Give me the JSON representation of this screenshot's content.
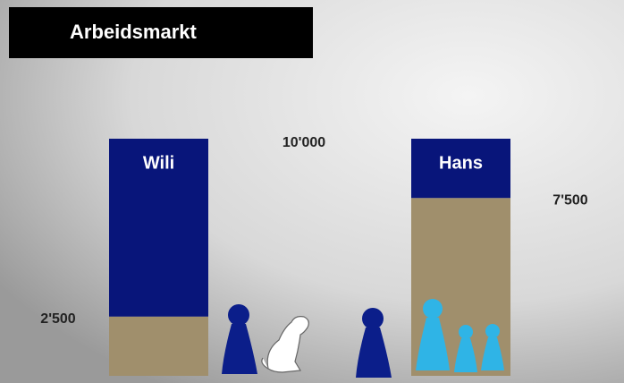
{
  "chart_data": {
    "type": "stacked_bar",
    "title": "Arbeidsmarkt",
    "categories": [
      "Wili",
      "Hans"
    ],
    "series": [
      {
        "color": "#a08f6c",
        "values": [
          2500,
          7500
        ],
        "value_labels": [
          "2'500",
          "7'500"
        ]
      },
      {
        "color": "#08157a",
        "values": [
          7500,
          2500
        ]
      }
    ],
    "ylim": [
      0,
      10000
    ],
    "annotations": [
      {
        "text": "10'000",
        "value": 10000
      }
    ]
  }
}
